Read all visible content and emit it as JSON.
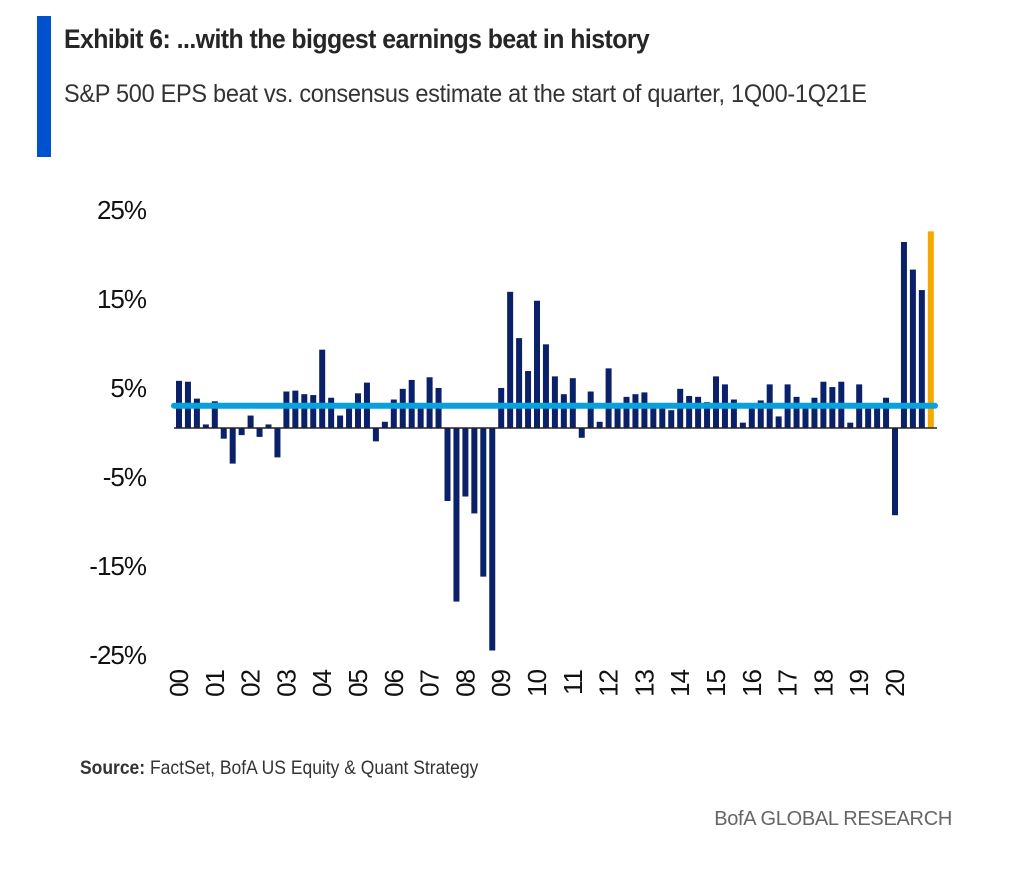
{
  "header": {
    "title": "Exhibit 6: ...with the biggest earnings beat in history",
    "subtitle": "S&P 500 EPS beat vs. consensus estimate at the start of quarter, 1Q00-1Q21E"
  },
  "footer": {
    "source_label": "Source:",
    "source_text": " FactSet, BofA US Equity & Quant Strategy",
    "brand": "BofA GLOBAL RESEARCH"
  },
  "colors": {
    "accent": "#0052cc",
    "bars": "#0a2169",
    "highlight_bar": "#f5a800",
    "average_line": "#0aa0dc"
  },
  "chart_data": {
    "type": "bar",
    "title": "",
    "xlabel": "",
    "ylabel": "",
    "ylim": [
      -25,
      25
    ],
    "yticks": [
      25,
      15,
      5,
      -5,
      -15,
      -25
    ],
    "ytick_labels": [
      "25%",
      "15%",
      "5%",
      "-5%",
      "-15%",
      "-25%"
    ],
    "xtick_labels": [
      "00",
      "01",
      "02",
      "03",
      "04",
      "05",
      "06",
      "07",
      "08",
      "09",
      "10",
      "11",
      "12",
      "13",
      "14",
      "15",
      "16",
      "17",
      "18",
      "19",
      "20"
    ],
    "categories_range": "1Q00-1Q21E",
    "values": [
      5.3,
      5.2,
      3.3,
      0.4,
      3.0,
      -1.2,
      -4.0,
      -0.8,
      1.4,
      -1.0,
      0.4,
      -3.3,
      4.1,
      4.2,
      3.8,
      3.7,
      8.8,
      3.4,
      1.4,
      2.2,
      3.9,
      5.1,
      -1.5,
      0.7,
      3.2,
      4.4,
      5.4,
      2.2,
      5.7,
      4.5,
      -8.2,
      -19.5,
      -7.7,
      -9.6,
      -16.7,
      -25.0,
      4.5,
      15.3,
      10.1,
      6.4,
      14.3,
      9.4,
      5.8,
      3.8,
      5.6,
      -1.1,
      4.1,
      0.7,
      6.7,
      2.4,
      3.5,
      3.8,
      4.0,
      2.4,
      2.4,
      2.0,
      4.4,
      3.6,
      3.5,
      2.9,
      5.8,
      4.9,
      3.2,
      0.6,
      2.4,
      3.1,
      4.9,
      1.3,
      4.9,
      3.5,
      2.4,
      3.4,
      5.2,
      4.6,
      5.2,
      0.6,
      4.9,
      2.4,
      2.4,
      3.4,
      -9.8,
      20.9,
      17.8,
      15.5,
      22.1
    ],
    "highlight_last": true,
    "average_line_value": 2.5,
    "grid": false
  }
}
